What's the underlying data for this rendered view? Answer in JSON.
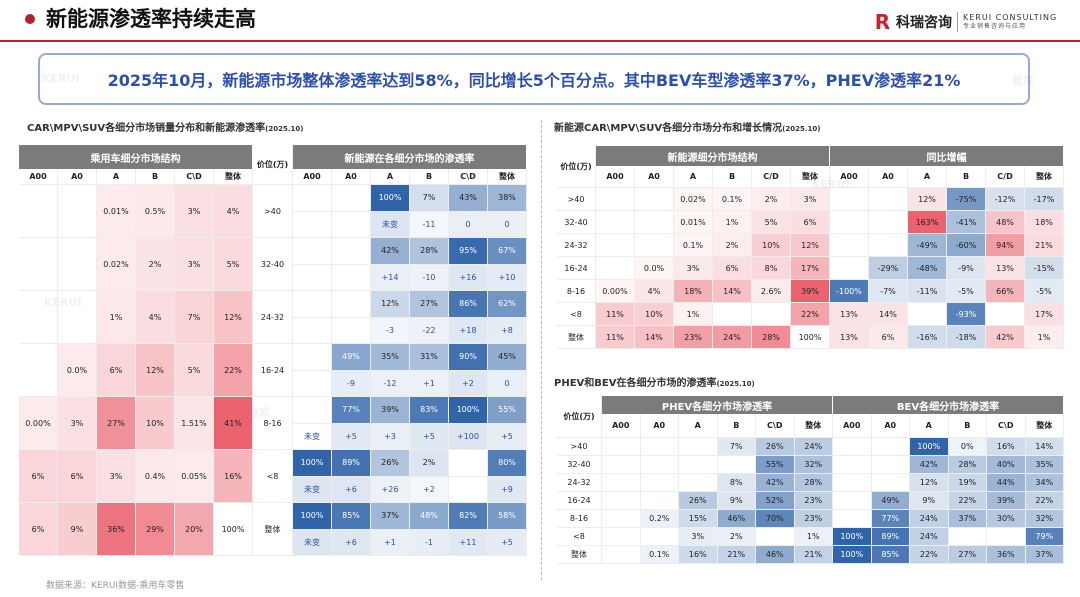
{
  "header": {
    "title": "新能源渗透率持续走高",
    "logo": {
      "mark": "R",
      "name": "科瑞咨询",
      "en1": "KERUI CONSULTING",
      "en2": "专业销售咨询与应用"
    }
  },
  "summary": "2025年10月，新能源市场整体渗透率达到58%，同比增长5个百分点。其中BEV车型渗透率37%，PHEV渗透率21%",
  "watermarks": {
    "w1": "KERUI",
    "w2": "智库"
  },
  "colors": {
    "red_scale": "#e8525f",
    "blue_scale": "#2f64a8",
    "header_gray": "#7b7b7b",
    "accent": "#c8202f",
    "summary_text": "#2c4fae"
  },
  "left": {
    "title": "CAR\\MPV\\SUV各细分市场销量分布和新能源渗透率",
    "date": "(2025.10)",
    "hdr_left": "乘用车细分市场结构",
    "hdr_mid": "价位(万)",
    "hdr_right": "新能源在各细分市场的渗透率",
    "cols": [
      "A00",
      "A0",
      "A",
      "B",
      "C\\D",
      "整体"
    ],
    "rows": [
      {
        "label": ">40",
        "share": [
          "",
          "",
          "0.01%",
          "0.5%",
          "3%",
          "4%"
        ],
        "share_v": [
          null,
          null,
          0.01,
          0.5,
          3,
          4
        ],
        "pen": [
          "",
          "",
          "100%",
          "7%",
          "43%",
          "38%"
        ],
        "pen_v": [
          null,
          null,
          100,
          7,
          43,
          38
        ],
        "delta": [
          "",
          "",
          "未变",
          "-11",
          "0",
          "0"
        ]
      },
      {
        "label": "32-40",
        "share": [
          "",
          "",
          "0.02%",
          "2%",
          "3%",
          "5%"
        ],
        "share_v": [
          null,
          null,
          0.02,
          2,
          3,
          5
        ],
        "pen": [
          "",
          "",
          "42%",
          "28%",
          "95%",
          "67%"
        ],
        "pen_v": [
          null,
          null,
          42,
          28,
          95,
          67
        ],
        "delta": [
          "",
          "",
          "+14",
          "-10",
          "+16",
          "+10"
        ]
      },
      {
        "label": "24-32",
        "share": [
          "",
          "",
          "1%",
          "4%",
          "7%",
          "12%"
        ],
        "share_v": [
          null,
          null,
          1,
          4,
          7,
          12
        ],
        "pen": [
          "",
          "",
          "12%",
          "27%",
          "86%",
          "62%"
        ],
        "pen_v": [
          null,
          null,
          12,
          27,
          86,
          62
        ],
        "delta": [
          "",
          "",
          "-3",
          "-22",
          "+18",
          "+8"
        ]
      },
      {
        "label": "16-24",
        "share": [
          "",
          "0.0%",
          "6%",
          "12%",
          "5%",
          "22%"
        ],
        "share_v": [
          null,
          0,
          6,
          12,
          5,
          22
        ],
        "pen": [
          "",
          "49%",
          "35%",
          "31%",
          "90%",
          "45%"
        ],
        "pen_v": [
          null,
          49,
          35,
          31,
          90,
          45
        ],
        "delta": [
          "",
          "-9",
          "-12",
          "+1",
          "+2",
          "0"
        ]
      },
      {
        "label": "8-16",
        "share": [
          "0.00%",
          "3%",
          "27%",
          "10%",
          "1.51%",
          "41%"
        ],
        "share_v": [
          0,
          3,
          27,
          10,
          1.51,
          41
        ],
        "pen": [
          "",
          "77%",
          "39%",
          "83%",
          "100%",
          "55%"
        ],
        "pen_v": [
          null,
          77,
          39,
          83,
          100,
          55
        ],
        "delta": [
          "未变",
          "+5",
          "+3",
          "+5",
          "+100",
          "+5"
        ]
      },
      {
        "label": "<8",
        "share": [
          "6%",
          "6%",
          "3%",
          "0.4%",
          "0.05%",
          "16%"
        ],
        "share_v": [
          6,
          6,
          3,
          0.4,
          0.05,
          16
        ],
        "pen": [
          "100%",
          "89%",
          "26%",
          "2%",
          "",
          "80%"
        ],
        "pen_v": [
          100,
          89,
          26,
          2,
          null,
          80
        ],
        "delta": [
          "未变",
          "+6",
          "+26",
          "+2",
          "",
          "+9"
        ]
      },
      {
        "label": "整体",
        "share": [
          "6%",
          "9%",
          "36%",
          "29%",
          "20%",
          "100%"
        ],
        "share_v": [
          6,
          9,
          36,
          29,
          20,
          null
        ],
        "pen": [
          "100%",
          "85%",
          "37%",
          "48%",
          "82%",
          "58%"
        ],
        "pen_v": [
          100,
          85,
          37,
          48,
          82,
          58
        ],
        "delta": [
          "未变",
          "+6",
          "+1",
          "-1",
          "+11",
          "+5"
        ]
      }
    ]
  },
  "right_top": {
    "title": "新能源CAR\\MPV\\SUV各细分市场分布和增长情况",
    "date": "(2025.10)",
    "hdr_price": "价位(万)",
    "hdr_left": "新能源细分市场结构",
    "hdr_right": "同比增幅",
    "cols": [
      "A00",
      "A0",
      "A",
      "B",
      "C/D",
      "整体"
    ],
    "rows": [
      {
        "label": ">40",
        "dist": [
          "",
          "",
          "0.02%",
          "0.1%",
          "2%",
          "3%"
        ],
        "dist_v": [
          null,
          null,
          0.02,
          0.1,
          2,
          3
        ],
        "yoy": [
          "",
          "",
          "12%",
          "-75%",
          "-12%",
          "-17%"
        ],
        "yoy_v": [
          null,
          null,
          12,
          -75,
          -12,
          -17
        ]
      },
      {
        "label": "32-40",
        "dist": [
          "",
          "",
          "0.01%",
          "1%",
          "5%",
          "6%"
        ],
        "dist_v": [
          null,
          null,
          0.01,
          1,
          5,
          6
        ],
        "yoy": [
          "",
          "",
          "163%",
          "-41%",
          "48%",
          "18%"
        ],
        "yoy_v": [
          null,
          null,
          163,
          -41,
          48,
          18
        ]
      },
      {
        "label": "24-32",
        "dist": [
          "",
          "",
          "0.1%",
          "2%",
          "10%",
          "12%"
        ],
        "dist_v": [
          null,
          null,
          0.1,
          2,
          10,
          12
        ],
        "yoy": [
          "",
          "",
          "-49%",
          "-60%",
          "94%",
          "21%"
        ],
        "yoy_v": [
          null,
          null,
          -49,
          -60,
          94,
          21
        ]
      },
      {
        "label": "16-24",
        "dist": [
          "",
          "0.0%",
          "3%",
          "6%",
          "8%",
          "17%"
        ],
        "dist_v": [
          null,
          0,
          3,
          6,
          8,
          17
        ],
        "yoy": [
          "",
          "-29%",
          "-48%",
          "-9%",
          "13%",
          "-15%"
        ],
        "yoy_v": [
          null,
          -29,
          -48,
          -9,
          13,
          -15
        ]
      },
      {
        "label": "8-16",
        "dist": [
          "0.00%",
          "4%",
          "18%",
          "14%",
          "2.6%",
          "39%"
        ],
        "dist_v": [
          0,
          4,
          18,
          14,
          2.6,
          39
        ],
        "yoy": [
          "-100%",
          "-7%",
          "-11%",
          "-5%",
          "66%",
          "-5%"
        ],
        "yoy_v": [
          -100,
          -7,
          -11,
          -5,
          66,
          -5
        ]
      },
      {
        "label": "<8",
        "dist": [
          "11%",
          "10%",
          "1%",
          "",
          "",
          "22%"
        ],
        "dist_v": [
          11,
          10,
          1,
          null,
          null,
          22
        ],
        "yoy": [
          "13%",
          "14%",
          "",
          "-93%",
          "",
          "17%"
        ],
        "yoy_v": [
          13,
          14,
          null,
          -93,
          null,
          17
        ]
      },
      {
        "label": "整体",
        "dist": [
          "11%",
          "14%",
          "23%",
          "24%",
          "28%",
          "100%"
        ],
        "dist_v": [
          11,
          14,
          23,
          24,
          28,
          null
        ],
        "yoy": [
          "13%",
          "6%",
          "-16%",
          "-18%",
          "42%",
          "1%"
        ],
        "yoy_v": [
          13,
          6,
          -16,
          -18,
          42,
          1
        ]
      }
    ]
  },
  "right_bottom": {
    "title": "PHEV和BEV在各细分市场的渗透率",
    "date": "(2025.10)",
    "hdr_price": "价位(万)",
    "hdr_left": "PHEV各细分市场渗透率",
    "hdr_right": "BEV各细分市场渗透率",
    "cols": [
      "A00",
      "A0",
      "A",
      "B",
      "C\\D",
      "整体"
    ],
    "rows": [
      {
        "label": ">40",
        "phev": [
          "",
          "",
          "",
          "7%",
          "26%",
          "24%"
        ],
        "phev_v": [
          null,
          null,
          null,
          7,
          26,
          24
        ],
        "bev": [
          "",
          "",
          "100%",
          "0%",
          "16%",
          "14%"
        ],
        "bev_v": [
          null,
          null,
          100,
          0,
          16,
          14
        ]
      },
      {
        "label": "32-40",
        "phev": [
          "",
          "",
          "",
          "",
          "55%",
          "32%"
        ],
        "phev_v": [
          null,
          null,
          null,
          null,
          55,
          32
        ],
        "bev": [
          "",
          "",
          "42%",
          "28%",
          "40%",
          "35%"
        ],
        "bev_v": [
          null,
          null,
          42,
          28,
          40,
          35
        ]
      },
      {
        "label": "24-32",
        "phev": [
          "",
          "",
          "",
          "8%",
          "42%",
          "28%"
        ],
        "phev_v": [
          null,
          null,
          null,
          8,
          42,
          28
        ],
        "bev": [
          "",
          "",
          "12%",
          "19%",
          "44%",
          "34%"
        ],
        "bev_v": [
          null,
          null,
          12,
          19,
          44,
          34
        ]
      },
      {
        "label": "16-24",
        "phev": [
          "",
          "",
          "26%",
          "9%",
          "52%",
          "23%"
        ],
        "phev_v": [
          null,
          null,
          26,
          9,
          52,
          23
        ],
        "bev": [
          "",
          "49%",
          "9%",
          "22%",
          "39%",
          "22%"
        ],
        "bev_v": [
          null,
          49,
          9,
          22,
          39,
          22
        ]
      },
      {
        "label": "8-16",
        "phev": [
          "",
          "0.2%",
          "15%",
          "46%",
          "70%",
          "23%"
        ],
        "phev_v": [
          null,
          0.2,
          15,
          46,
          70,
          23
        ],
        "bev": [
          "",
          "77%",
          "24%",
          "37%",
          "30%",
          "32%"
        ],
        "bev_v": [
          null,
          77,
          24,
          37,
          30,
          32
        ]
      },
      {
        "label": "<8",
        "phev": [
          "",
          "",
          "3%",
          "2%",
          "",
          "1%"
        ],
        "phev_v": [
          null,
          null,
          3,
          2,
          null,
          1
        ],
        "bev": [
          "100%",
          "89%",
          "24%",
          "",
          "",
          "79%"
        ],
        "bev_v": [
          100,
          89,
          24,
          null,
          null,
          79
        ]
      },
      {
        "label": "整体",
        "phev": [
          "",
          "0.1%",
          "16%",
          "21%",
          "46%",
          "21%"
        ],
        "phev_v": [
          null,
          0.1,
          16,
          21,
          46,
          21
        ],
        "bev": [
          "100%",
          "85%",
          "22%",
          "27%",
          "36%",
          "37%"
        ],
        "bev_v": [
          100,
          85,
          22,
          27,
          36,
          37
        ]
      }
    ]
  },
  "source": "数据来源：KERUI数据-乘用车零售"
}
